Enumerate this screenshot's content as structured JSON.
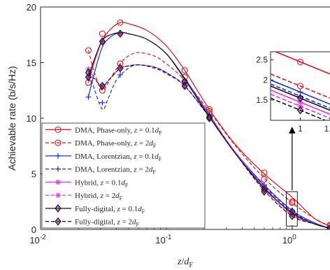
{
  "chart_data": {
    "type": "line",
    "xscale": "log",
    "xlim": [
      0.01,
      2
    ],
    "ylim": [
      0,
      20
    ],
    "xticks": [
      {
        "v": 0.01,
        "base": "10",
        "exp": "-2"
      },
      {
        "v": 0.1,
        "base": "10",
        "exp": "-1"
      },
      {
        "v": 1,
        "base": "10",
        "exp": "0"
      }
    ],
    "yticks": [
      "0",
      "5",
      "10",
      "15",
      "20"
    ],
    "xlabel": {
      "var": "z",
      "slash": "/",
      "d": "d",
      "sub": "F"
    },
    "ylabel": "Achievable rate (b/s/Hz)",
    "series": [
      {
        "name": "DMA, Phase-only,",
        "math": {
          "var": "z",
          "eq": " = ",
          "coef": "0.1",
          "d": "d",
          "sub": "F"
        },
        "color": "#e8141a",
        "dash": "solid",
        "marker": "circle",
        "points": [
          [
            0.024,
            13.2
          ],
          [
            0.027,
            15.2
          ],
          [
            0.031,
            17.0
          ],
          [
            0.036,
            18.0
          ],
          [
            0.043,
            18.6
          ],
          [
            0.05,
            18.5
          ],
          [
            0.07,
            17.9
          ],
          [
            0.1,
            16.5
          ],
          [
            0.14,
            14.3
          ],
          [
            0.22,
            10.8
          ],
          [
            0.35,
            7.7
          ],
          [
            0.6,
            5.0
          ],
          [
            1.0,
            2.9
          ],
          [
            1.5,
            1.0
          ],
          [
            2.0,
            0.3
          ]
        ],
        "marker_points": [
          [
            0.024,
            13.2
          ],
          [
            0.031,
            17.6
          ],
          [
            0.043,
            18.6
          ],
          [
            0.14,
            14.3
          ],
          [
            0.22,
            10.8
          ],
          [
            0.6,
            5.1
          ],
          [
            1.0,
            2.5
          ],
          [
            2.0,
            0.4
          ]
        ]
      },
      {
        "name": "DMA, Phase-only,",
        "math": {
          "var": "z",
          "eq": " = ",
          "coef": "2",
          "d": "d",
          "sub": "F"
        },
        "color": "#e8141a",
        "dash": "dashed",
        "marker": "circle",
        "points": [
          [
            0.024,
            16.1
          ],
          [
            0.027,
            14.0
          ],
          [
            0.031,
            12.5
          ],
          [
            0.036,
            13.6
          ],
          [
            0.043,
            14.9
          ],
          [
            0.05,
            15.6
          ],
          [
            0.06,
            15.9
          ],
          [
            0.08,
            15.6
          ],
          [
            0.1,
            14.9
          ],
          [
            0.14,
            13.4
          ],
          [
            0.22,
            10.6
          ],
          [
            0.35,
            7.6
          ],
          [
            0.6,
            4.6
          ],
          [
            1.0,
            2.4
          ],
          [
            1.5,
            1.0
          ],
          [
            2.0,
            0.3
          ]
        ],
        "marker_points": [
          [
            0.024,
            16.1
          ],
          [
            0.031,
            12.5
          ],
          [
            0.043,
            14.9
          ],
          [
            0.14,
            13.7
          ],
          [
            0.22,
            10.6
          ],
          [
            0.6,
            4.5
          ],
          [
            1.0,
            2.4
          ],
          [
            2.0,
            0.3
          ]
        ]
      },
      {
        "name": "DMA, Lorentzian,",
        "math": {
          "var": "z",
          "eq": " = ",
          "coef": "0.1",
          "d": "d",
          "sub": "F"
        },
        "color": "#1530e8",
        "dash": "solid",
        "marker": "plus",
        "points": [
          [
            0.024,
            11.9
          ],
          [
            0.027,
            14.2
          ],
          [
            0.031,
            16.4
          ],
          [
            0.036,
            17.3
          ],
          [
            0.043,
            17.7
          ],
          [
            0.05,
            17.6
          ],
          [
            0.07,
            17.1
          ],
          [
            0.1,
            15.8
          ],
          [
            0.14,
            13.6
          ],
          [
            0.22,
            10.3
          ],
          [
            0.35,
            7.0
          ],
          [
            0.6,
            4.0
          ],
          [
            1.0,
            1.7
          ],
          [
            1.5,
            0.6
          ],
          [
            2.0,
            0.1
          ]
        ],
        "marker_points": [
          [
            0.024,
            11.9
          ],
          [
            0.031,
            16.9
          ],
          [
            0.043,
            17.6
          ],
          [
            0.14,
            13.4
          ],
          [
            0.22,
            10.3
          ],
          [
            0.6,
            4.0
          ],
          [
            1.0,
            1.7
          ],
          [
            2.0,
            0.2
          ]
        ]
      },
      {
        "name": "DMA, Lorentzian,",
        "math": {
          "var": "z",
          "eq": " = ",
          "coef": "2",
          "d": "d",
          "sub": "F"
        },
        "color": "#1530e8",
        "dash": "dashed",
        "marker": "plus",
        "points": [
          [
            0.024,
            14.4
          ],
          [
            0.027,
            12.5
          ],
          [
            0.031,
            10.8
          ],
          [
            0.034,
            11.6
          ],
          [
            0.04,
            13.4
          ],
          [
            0.05,
            14.5
          ],
          [
            0.06,
            14.8
          ],
          [
            0.08,
            14.5
          ],
          [
            0.1,
            14.0
          ],
          [
            0.14,
            12.9
          ],
          [
            0.22,
            10.1
          ],
          [
            0.35,
            7.0
          ],
          [
            0.6,
            3.9
          ],
          [
            1.0,
            1.6
          ],
          [
            1.5,
            0.6
          ],
          [
            2.0,
            0.1
          ]
        ],
        "marker_points": [
          [
            0.024,
            14.4
          ],
          [
            0.031,
            11.4
          ],
          [
            0.043,
            13.9
          ],
          [
            0.14,
            12.9
          ],
          [
            0.22,
            10.1
          ],
          [
            0.6,
            3.9
          ],
          [
            1.0,
            1.6
          ],
          [
            2.0,
            0.1
          ]
        ]
      },
      {
        "name": "Hybrid,",
        "math": {
          "var": "z",
          "eq": " = ",
          "coef": "0.1",
          "d": "d",
          "sub": "F"
        },
        "color": "#e833e8",
        "dash": "solid",
        "marker": "star",
        "points": [
          [
            0.024,
            13.6
          ],
          [
            0.027,
            15.3
          ],
          [
            0.031,
            17.0
          ],
          [
            0.036,
            17.5
          ],
          [
            0.043,
            17.7
          ],
          [
            0.05,
            17.6
          ],
          [
            0.07,
            17.1
          ],
          [
            0.1,
            15.8
          ],
          [
            0.14,
            13.5
          ],
          [
            0.22,
            10.2
          ],
          [
            0.35,
            7.0
          ],
          [
            0.6,
            3.8
          ],
          [
            1.0,
            1.4
          ],
          [
            1.5,
            0.5
          ],
          [
            2.0,
            0.1
          ]
        ],
        "marker_points": [
          [
            0.024,
            13.6
          ],
          [
            0.031,
            16.9
          ],
          [
            0.043,
            17.6
          ],
          [
            0.14,
            13.3
          ],
          [
            0.22,
            10.2
          ],
          [
            0.6,
            3.8
          ],
          [
            1.0,
            1.4
          ],
          [
            2.0,
            0.1
          ]
        ]
      },
      {
        "name": "Hybrid,",
        "math": {
          "var": "z",
          "eq": " = ",
          "coef": "2",
          "d": "d",
          "sub": "F"
        },
        "color": "#e833e8",
        "dash": "dashed",
        "marker": "star",
        "points": [
          [
            0.024,
            14.4
          ],
          [
            0.027,
            13.6
          ],
          [
            0.031,
            12.9
          ],
          [
            0.036,
            13.6
          ],
          [
            0.043,
            14.5
          ],
          [
            0.05,
            14.7
          ],
          [
            0.06,
            14.8
          ],
          [
            0.08,
            14.6
          ],
          [
            0.1,
            14.1
          ],
          [
            0.14,
            12.9
          ],
          [
            0.22,
            10.1
          ],
          [
            0.35,
            6.9
          ],
          [
            0.6,
            3.6
          ],
          [
            1.0,
            1.3
          ],
          [
            1.5,
            0.5
          ],
          [
            2.0,
            0.1
          ]
        ],
        "marker_points": [
          [
            0.024,
            14.4
          ],
          [
            0.031,
            12.9
          ],
          [
            0.043,
            14.5
          ],
          [
            0.14,
            12.9
          ],
          [
            0.22,
            10.0
          ],
          [
            0.6,
            3.6
          ],
          [
            1.0,
            1.3
          ],
          [
            2.0,
            0.1
          ]
        ]
      },
      {
        "name": "Fully-digital,",
        "math": {
          "var": "z",
          "eq": " = ",
          "coef": "0.1",
          "d": "d",
          "sub": "F"
        },
        "color": "#111111",
        "dash": "solid",
        "marker": "diamond",
        "points": [
          [
            0.024,
            13.7
          ],
          [
            0.027,
            15.4
          ],
          [
            0.031,
            17.0
          ],
          [
            0.036,
            17.5
          ],
          [
            0.043,
            17.7
          ],
          [
            0.05,
            17.6
          ],
          [
            0.07,
            17.1
          ],
          [
            0.1,
            15.8
          ],
          [
            0.14,
            13.5
          ],
          [
            0.22,
            10.1
          ],
          [
            0.35,
            6.9
          ],
          [
            0.6,
            3.7
          ],
          [
            1.0,
            1.5
          ],
          [
            1.5,
            0.5
          ],
          [
            2.0,
            0.1
          ]
        ],
        "marker_points": [
          [
            0.024,
            13.7
          ],
          [
            0.031,
            16.9
          ],
          [
            0.043,
            17.6
          ],
          [
            0.14,
            13.3
          ],
          [
            0.22,
            10.1
          ],
          [
            0.6,
            3.6
          ],
          [
            1.0,
            1.6
          ],
          [
            2.0,
            0.1
          ]
        ]
      },
      {
        "name": "Fully-digital,",
        "math": {
          "var": "z",
          "eq": " = ",
          "coef": "2",
          "d": "d",
          "sub": "F"
        },
        "color": "#111111",
        "dash": "dashed",
        "marker": "diamond",
        "points": [
          [
            0.024,
            14.1
          ],
          [
            0.027,
            13.5
          ],
          [
            0.031,
            12.9
          ],
          [
            0.036,
            13.6
          ],
          [
            0.043,
            14.5
          ],
          [
            0.05,
            14.7
          ],
          [
            0.06,
            14.8
          ],
          [
            0.08,
            14.6
          ],
          [
            0.1,
            14.1
          ],
          [
            0.14,
            12.9
          ],
          [
            0.22,
            10.1
          ],
          [
            0.35,
            6.9
          ],
          [
            0.6,
            3.5
          ],
          [
            1.0,
            1.2
          ],
          [
            1.5,
            0.5
          ],
          [
            2.0,
            0.1
          ]
        ],
        "marker_points": [
          [
            0.024,
            14.1
          ],
          [
            0.031,
            12.9
          ],
          [
            0.043,
            14.5
          ],
          [
            0.14,
            12.9
          ],
          [
            0.22,
            10.0
          ],
          [
            0.6,
            3.4
          ],
          [
            1.0,
            1.2
          ],
          [
            2.0,
            0.1
          ]
        ]
      }
    ],
    "legend": {
      "position": "bottom-left"
    },
    "inset": {
      "xlim": [
        0.9,
        1.1
      ],
      "ylim": [
        1.0,
        2.7
      ],
      "xticks": [
        {
          "v": 1,
          "label": "1"
        },
        {
          "v": 1.1,
          "label": "1.1"
        }
      ],
      "yticks": [
        {
          "v": 1.5,
          "label": "1.5"
        },
        {
          "v": 2.0,
          "label": "2"
        },
        {
          "v": 2.5,
          "label": "2.5"
        }
      ],
      "zoom_region": {
        "x": [
          0.9,
          1.1
        ],
        "y": [
          0.3,
          3.4
        ]
      },
      "values_at_1": [
        2.45,
        1.85,
        1.7,
        1.6,
        1.45,
        1.35,
        1.55,
        1.25
      ],
      "slopes": [
        -3.0,
        -3.0,
        -3.0,
        -3.0,
        -3.0,
        -3.0,
        -3.0,
        -3.0
      ]
    }
  }
}
